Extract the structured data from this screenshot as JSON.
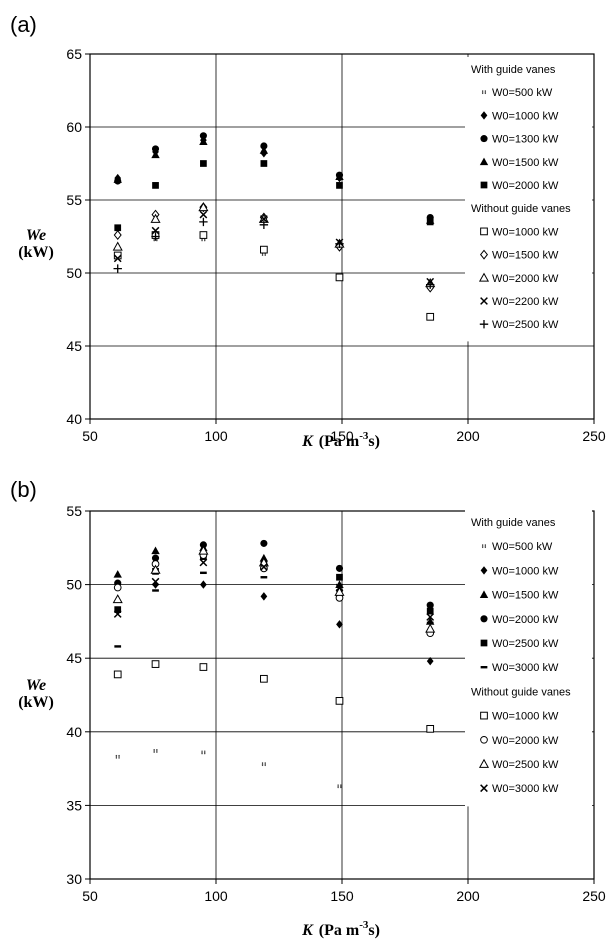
{
  "chart_data": [
    {
      "type": "scatter",
      "panel_label": "(a)",
      "ylabel_var": "We",
      "ylabel_unit": "(kW)",
      "xlabel_var": "K",
      "xlabel_unit_pre": "(Pa m",
      "xlabel_unit_sup": "-3",
      "xlabel_unit_post": "s)",
      "xlim": [
        50,
        250
      ],
      "ylim": [
        40,
        65
      ],
      "xticks": [
        50,
        100,
        150,
        200,
        250
      ],
      "yticks": [
        40,
        45,
        50,
        55,
        60,
        65
      ],
      "xtick_labels": [
        "50",
        "100",
        "150",
        "200",
        "250"
      ],
      "ytick_labels": [
        "40",
        "45",
        "50",
        "55",
        "60",
        "65"
      ],
      "grid": "major",
      "legend_position": "right",
      "legend_groups": [
        {
          "header": "With guide vanes",
          "series": [
            {
              "name": "W0=500 kW",
              "marker": "dots",
              "x": [
                61,
                76,
                95,
                119,
                149
              ],
              "y": [
                51.3,
                52.3,
                52.3,
                51.3,
                49.6
              ]
            },
            {
              "name": "W0=1000 kW",
              "marker": "diamond-filled",
              "x": [
                61,
                76,
                95,
                119,
                149,
                185
              ],
              "y": [
                56.5,
                58.3,
                59.1,
                58.2,
                56.5,
                53.7
              ]
            },
            {
              "name": "W0=1300 kW",
              "marker": "circle-filled",
              "x": [
                61,
                76,
                95,
                119,
                149,
                185
              ],
              "y": [
                56.3,
                58.5,
                59.4,
                58.7,
                56.7,
                53.8
              ]
            },
            {
              "name": "W0=1500 kW",
              "marker": "triangle-filled",
              "x": [
                61,
                76,
                95,
                119,
                149,
                185
              ],
              "y": [
                56.4,
                58.1,
                59.0,
                58.4,
                56.6,
                53.6
              ]
            },
            {
              "name": "W0=2000 kW",
              "marker": "square-filled",
              "x": [
                61,
                76,
                95,
                119,
                149,
                185
              ],
              "y": [
                53.1,
                56.0,
                57.5,
                57.5,
                56.0,
                53.5
              ]
            }
          ]
        },
        {
          "header": "Without guide vanes",
          "series": [
            {
              "name": "W0=1000 kW",
              "marker": "square-open",
              "x": [
                61,
                76,
                95,
                119,
                149,
                185
              ],
              "y": [
                51.2,
                52.6,
                52.6,
                51.6,
                49.7,
                47.0
              ]
            },
            {
              "name": "W0=1500 kW",
              "marker": "diamond-open",
              "x": [
                61,
                76,
                95,
                119,
                149,
                185
              ],
              "y": [
                52.6,
                54.0,
                54.5,
                53.8,
                51.8,
                49.0
              ]
            },
            {
              "name": "W0=2000 kW",
              "marker": "triangle-open",
              "x": [
                61,
                76,
                95,
                119,
                149,
                185
              ],
              "y": [
                51.8,
                53.7,
                54.5,
                53.7,
                52.0,
                49.3
              ]
            },
            {
              "name": "W0=2200 kW",
              "marker": "x",
              "x": [
                61,
                76,
                95,
                119,
                149,
                185
              ],
              "y": [
                51.0,
                52.9,
                54.0,
                53.7,
                52.1,
                49.4
              ]
            },
            {
              "name": "W0=2500 kW",
              "marker": "plus",
              "x": [
                61,
                76,
                95,
                119,
                149,
                185
              ],
              "y": [
                50.3,
                52.5,
                53.5,
                53.3,
                52.0,
                49.2
              ]
            }
          ]
        }
      ]
    },
    {
      "type": "scatter",
      "panel_label": "(b)",
      "ylabel_var": "We",
      "ylabel_unit": "(kW)",
      "xlabel_var": "K",
      "xlabel_unit_pre": "(Pa m",
      "xlabel_unit_sup": "-3",
      "xlabel_unit_post": "s)",
      "xlim": [
        50,
        250
      ],
      "ylim": [
        30,
        55
      ],
      "xticks": [
        50,
        100,
        150,
        200,
        250
      ],
      "yticks": [
        30,
        35,
        40,
        45,
        50,
        55
      ],
      "xtick_labels": [
        "50",
        "100",
        "150",
        "200",
        "250"
      ],
      "ytick_labels": [
        "30",
        "35",
        "40",
        "45",
        "50",
        "55"
      ],
      "grid": "major",
      "legend_position": "right",
      "legend_groups": [
        {
          "header": "With guide vanes",
          "series": [
            {
              "name": "W0=500 kW",
              "marker": "dots",
              "x": [
                61,
                76,
                95,
                119,
                149
              ],
              "y": [
                38.3,
                38.7,
                38.6,
                37.8,
                36.3
              ]
            },
            {
              "name": "W0=1000 kW",
              "marker": "diamond-filled",
              "x": [
                61,
                76,
                95,
                119,
                149,
                185
              ],
              "y": [
                50.0,
                50.0,
                50.0,
                49.2,
                47.3,
                44.8
              ]
            },
            {
              "name": "W0=1500 kW",
              "marker": "triangle-filled",
              "x": [
                61,
                76,
                95,
                119,
                149,
                185
              ],
              "y": [
                50.7,
                52.3,
                52.5,
                51.8,
                50.0,
                47.5
              ]
            },
            {
              "name": "W0=2000 kW",
              "marker": "circle-filled",
              "x": [
                61,
                76,
                95,
                119,
                149,
                185
              ],
              "y": [
                50.1,
                51.8,
                52.7,
                52.8,
                51.1,
                48.6
              ]
            },
            {
              "name": "W0=2500 kW",
              "marker": "square-filled",
              "x": [
                61,
                76,
                95,
                119,
                149,
                185
              ],
              "y": [
                48.3,
                50.9,
                51.9,
                51.4,
                50.5,
                48.2
              ]
            },
            {
              "name": "W0=3000 kW",
              "marker": "dash",
              "x": [
                61,
                76,
                95,
                119,
                149,
                185
              ],
              "y": [
                45.8,
                49.6,
                50.8,
                50.5,
                49.6,
                47.4
              ]
            }
          ]
        },
        {
          "header": "Without guide vanes",
          "series": [
            {
              "name": "W0=1000 kW",
              "marker": "square-open",
              "x": [
                61,
                76,
                95,
                119,
                149,
                185
              ],
              "y": [
                43.9,
                44.6,
                44.4,
                43.6,
                42.1,
                40.2
              ]
            },
            {
              "name": "W0=2000 kW",
              "marker": "circle-open",
              "x": [
                61,
                76,
                95,
                119,
                149,
                185
              ],
              "y": [
                49.8,
                51.4,
                52.0,
                51.1,
                49.1,
                46.7
              ]
            },
            {
              "name": "W0=2500 kW",
              "marker": "triangle-open",
              "x": [
                61,
                76,
                95,
                119,
                149,
                185
              ],
              "y": [
                49.0,
                51.0,
                52.3,
                51.5,
                49.5,
                47.0
              ]
            },
            {
              "name": "W0=3000 kW",
              "marker": "x",
              "x": [
                61,
                76,
                95,
                119,
                149,
                185
              ],
              "y": [
                48.0,
                50.2,
                51.5,
                51.2,
                49.8,
                47.8
              ]
            }
          ]
        }
      ]
    }
  ]
}
